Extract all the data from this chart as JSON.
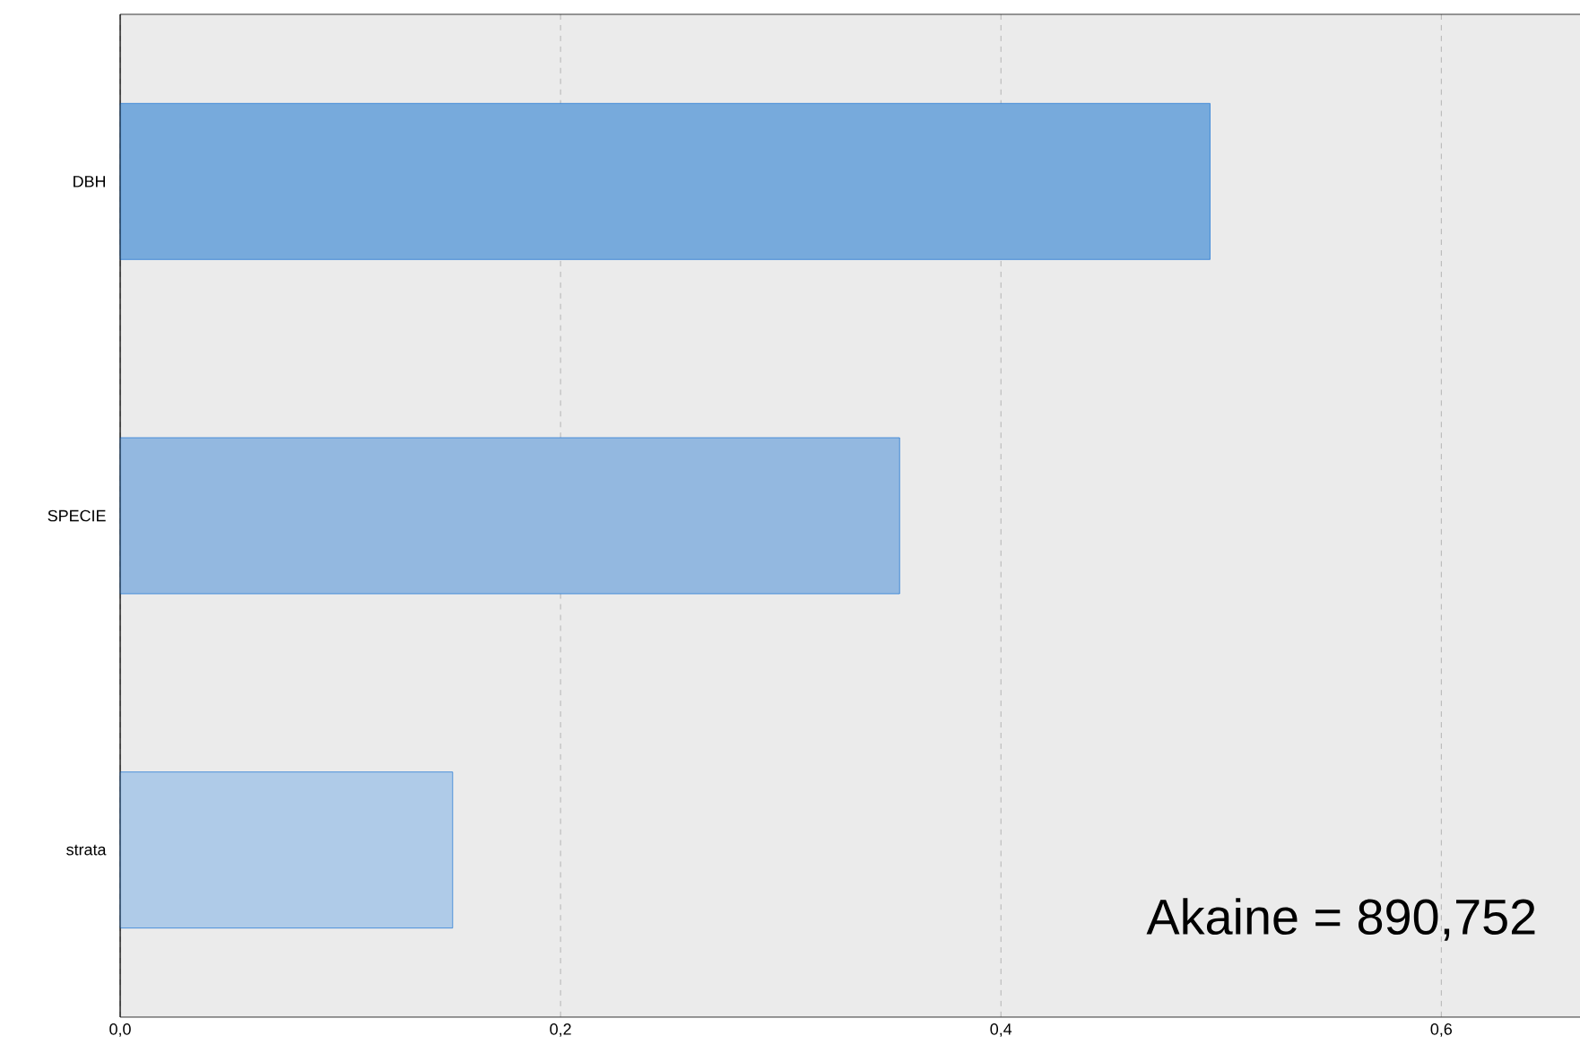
{
  "chart_data": {
    "type": "bar",
    "orientation": "horizontal",
    "categories": [
      "DBH",
      "SPECIE",
      "strata"
    ],
    "values": [
      0.495,
      0.354,
      0.151
    ],
    "colors": [
      "#77aadc",
      "#93b8e0",
      "#afcbe8"
    ],
    "xlim": [
      0,
      0.663
    ],
    "xticks": [
      {
        "value": 0,
        "label": "0,0"
      },
      {
        "value": 0.2,
        "label": "0,2"
      },
      {
        "value": 0.4,
        "label": "0,4"
      },
      {
        "value": 0.6,
        "label": "0,6"
      }
    ],
    "grid": "x",
    "annotations": [
      "Akaine = 890,752"
    ]
  }
}
